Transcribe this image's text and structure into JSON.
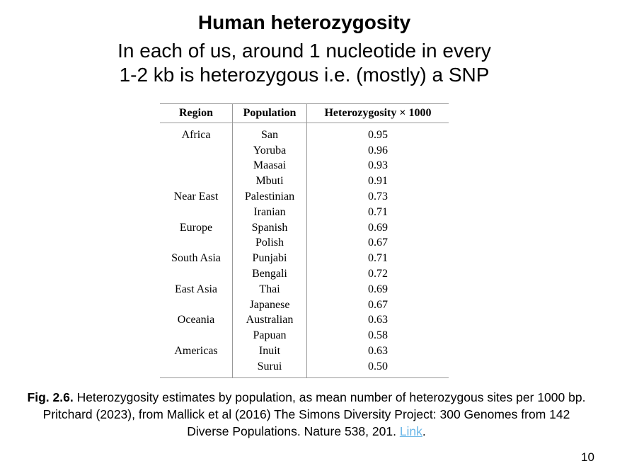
{
  "header": {
    "title": "Human heterozygosity",
    "subtitle_lines": [
      "In each of us, around 1 nucleotide in every",
      "1-2 kb is heterozygous i.e. (mostly) a SNP"
    ]
  },
  "table": {
    "columns": [
      "Region",
      "Population",
      "Heterozygosity × 1000"
    ],
    "rows": [
      [
        "Africa",
        "San",
        "0.95"
      ],
      [
        null,
        "Yoruba",
        "0.96"
      ],
      [
        null,
        "Maasai",
        "0.93"
      ],
      [
        null,
        "Mbuti",
        "0.91"
      ],
      [
        "Near East",
        "Palestinian",
        "0.73"
      ],
      [
        null,
        "Iranian",
        "0.71"
      ],
      [
        "Europe",
        "Spanish",
        "0.69"
      ],
      [
        null,
        "Polish",
        "0.67"
      ],
      [
        "South Asia",
        "Punjabi",
        "0.71"
      ],
      [
        null,
        "Bengali",
        "0.72"
      ],
      [
        "East Asia",
        "Thai",
        "0.69"
      ],
      [
        null,
        "Japanese",
        "0.67"
      ],
      [
        "Oceania",
        "Australian",
        "0.63"
      ],
      [
        null,
        "Papuan",
        "0.58"
      ],
      [
        "Americas",
        "Inuit",
        "0.63"
      ],
      [
        null,
        "Surui",
        "0.50"
      ]
    ]
  },
  "caption": {
    "label": "Fig. 2.6.",
    "text": "Heterozygosity estimates by population, as mean number of heterozygous sites per 1000 bp. Pritchard (2023), from Mallick et al (2016) The Simons Diversity Project: 300 Genomes from 142 Diverse Populations. Nature 538, 201.",
    "link": "Link",
    "end": "."
  },
  "page_number": "10"
}
